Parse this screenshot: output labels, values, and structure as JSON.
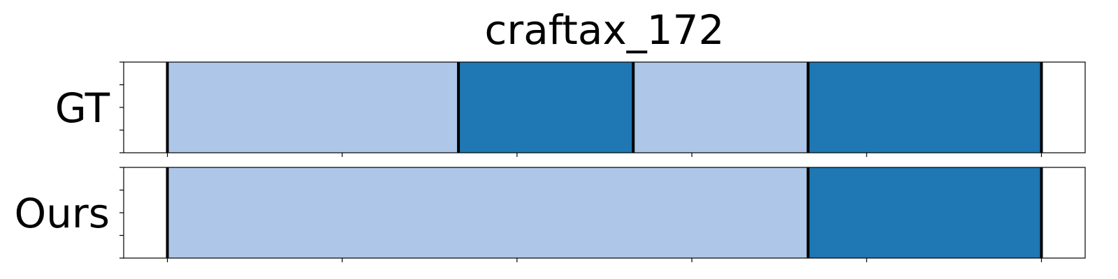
{
  "chart_data": {
    "type": "segmentation-timeline",
    "title": "craftax_172",
    "x_range": [
      -0.5,
      10.5
    ],
    "x_ticks": [
      0,
      2,
      4,
      6,
      8,
      10
    ],
    "rows": [
      {
        "label": "GT",
        "segments": [
          {
            "start": 0,
            "end": 3.33,
            "class": "light"
          },
          {
            "start": 3.33,
            "end": 5.33,
            "class": "dark"
          },
          {
            "start": 5.33,
            "end": 7.33,
            "class": "light"
          },
          {
            "start": 7.33,
            "end": 10,
            "class": "dark"
          }
        ],
        "boundaries": [
          0,
          3.33,
          5.33,
          7.33,
          10
        ]
      },
      {
        "label": "Ours",
        "segments": [
          {
            "start": 0,
            "end": 7.33,
            "class": "light"
          },
          {
            "start": 7.33,
            "end": 10,
            "class": "dark"
          }
        ],
        "boundaries": [
          0,
          7.33,
          10
        ]
      }
    ],
    "colors": {
      "light": "#aec7e8",
      "dark": "#1f77b4",
      "boundary": "#000000"
    }
  }
}
